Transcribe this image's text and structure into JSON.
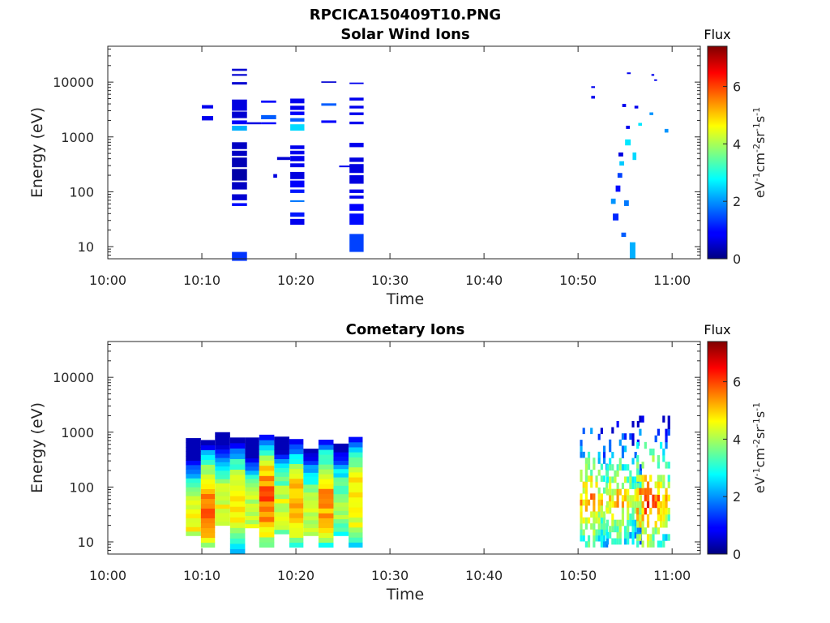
{
  "figure_title": "RPCICA150409T10.PNG",
  "colorbar": {
    "label": "Flux",
    "units": "eV-1cm-2sr-1s-1",
    "units_parts": [
      {
        "t": "eV",
        "sup": false
      },
      {
        "t": "-1",
        "sup": true
      },
      {
        "t": "cm",
        "sup": false
      },
      {
        "t": "-2",
        "sup": true
      },
      {
        "t": "sr",
        "sup": false
      },
      {
        "t": "-1",
        "sup": true
      },
      {
        "t": "s",
        "sup": false
      },
      {
        "t": "-1",
        "sup": true
      }
    ],
    "range": [
      0,
      7.4
    ],
    "ticks": [
      "0",
      "2",
      "4",
      "6"
    ],
    "colormap": "jet"
  },
  "chart_data": [
    {
      "type": "heatmap",
      "title": "Solar Wind Ions",
      "xlabel": "Time",
      "ylabel": "Energy (eV)",
      "x_ticks": [
        "10:00",
        "10:10",
        "10:20",
        "10:30",
        "10:40",
        "10:50",
        "11:00"
      ],
      "y_ticks": [
        "10",
        "100",
        "1000",
        "10000"
      ],
      "y_scale": "log",
      "xlim_minutes_after_10h": [
        0,
        63
      ],
      "ylim_eV": [
        6,
        45000
      ],
      "cells_time_min_emin_emax_flux": [
        [
          10.0,
          11.2,
          2000,
          2400,
          0.8
        ],
        [
          10.0,
          11.2,
          3300,
          3800,
          0.8
        ],
        [
          13.2,
          14.8,
          5.5,
          8,
          1.3
        ],
        [
          13.2,
          14.8,
          55,
          62,
          1.0
        ],
        [
          13.2,
          14.8,
          70,
          90,
          0.6
        ],
        [
          13.2,
          14.8,
          110,
          150,
          0.5
        ],
        [
          13.2,
          14.8,
          160,
          260,
          0.3
        ],
        [
          13.2,
          14.8,
          280,
          420,
          0.4
        ],
        [
          13.2,
          14.8,
          450,
          560,
          0.5
        ],
        [
          13.2,
          14.8,
          600,
          800,
          0.5
        ],
        [
          13.2,
          14.8,
          1300,
          1600,
          2.2
        ],
        [
          13.2,
          14.8,
          1700,
          2000,
          0.9
        ],
        [
          13.2,
          14.8,
          2200,
          2900,
          0.6
        ],
        [
          13.2,
          14.8,
          3000,
          4800,
          0.7
        ],
        [
          13.2,
          14.8,
          9000,
          10000,
          0.6
        ],
        [
          13.2,
          14.8,
          13000,
          14000,
          0.6
        ],
        [
          13.2,
          14.8,
          16000,
          17500,
          0.6
        ],
        [
          14.8,
          16.3,
          1700,
          1850,
          0.7
        ],
        [
          16.3,
          17.9,
          1700,
          1850,
          0.9
        ],
        [
          16.3,
          17.9,
          2100,
          2500,
          1.6
        ],
        [
          16.3,
          17.9,
          4200,
          4600,
          0.9
        ],
        [
          17.6,
          18.0,
          180,
          210,
          0.7
        ],
        [
          18.0,
          19.4,
          380,
          430,
          0.6
        ],
        [
          19.4,
          20.9,
          25,
          32,
          0.8
        ],
        [
          19.4,
          20.9,
          35,
          42,
          1.1
        ],
        [
          19.4,
          20.9,
          65,
          70,
          1.8
        ],
        [
          19.4,
          20.9,
          95,
          110,
          1.1
        ],
        [
          19.4,
          20.9,
          120,
          160,
          0.9
        ],
        [
          19.4,
          20.9,
          170,
          230,
          0.7
        ],
        [
          19.4,
          20.9,
          280,
          330,
          0.8
        ],
        [
          19.4,
          20.9,
          360,
          450,
          0.8
        ],
        [
          19.4,
          20.9,
          480,
          560,
          0.8
        ],
        [
          19.4,
          20.9,
          600,
          700,
          0.8
        ],
        [
          19.4,
          20.9,
          1300,
          1700,
          2.5
        ],
        [
          19.4,
          20.9,
          1900,
          2200,
          1.6
        ],
        [
          19.4,
          20.9,
          2500,
          2900,
          0.9
        ],
        [
          19.4,
          20.9,
          3100,
          3700,
          0.8
        ],
        [
          19.4,
          20.9,
          4100,
          5000,
          0.8
        ],
        [
          22.7,
          24.3,
          1800,
          2000,
          0.9
        ],
        [
          22.7,
          24.3,
          3700,
          4100,
          1.6
        ],
        [
          22.7,
          24.3,
          9700,
          10300,
          0.6
        ],
        [
          24.6,
          26.0,
          280,
          300,
          0.8
        ],
        [
          25.7,
          27.2,
          8,
          17,
          1.4
        ],
        [
          25.7,
          27.2,
          25,
          40,
          1.0
        ],
        [
          25.7,
          27.2,
          45,
          60,
          0.9
        ],
        [
          25.7,
          27.2,
          75,
          85,
          0.8
        ],
        [
          25.7,
          27.2,
          95,
          110,
          0.8
        ],
        [
          25.7,
          27.2,
          140,
          200,
          0.7
        ],
        [
          25.7,
          27.2,
          220,
          320,
          0.7
        ],
        [
          25.7,
          27.2,
          350,
          420,
          0.7
        ],
        [
          25.7,
          27.2,
          650,
          780,
          0.8
        ],
        [
          25.7,
          27.2,
          1700,
          1900,
          0.8
        ],
        [
          25.7,
          27.2,
          2500,
          2800,
          0.8
        ],
        [
          25.7,
          27.2,
          3300,
          3700,
          0.8
        ],
        [
          25.7,
          27.2,
          4600,
          5200,
          0.8
        ],
        [
          25.7,
          27.2,
          9200,
          9800,
          0.8
        ],
        [
          51.4,
          51.8,
          5000,
          5600,
          0.8
        ],
        [
          51.4,
          51.8,
          7800,
          8400,
          0.8
        ],
        [
          53.5,
          54.0,
          60,
          75,
          2.0
        ],
        [
          53.7,
          54.3,
          30,
          40,
          1.2
        ],
        [
          54.0,
          54.5,
          100,
          130,
          1.0
        ],
        [
          54.2,
          54.7,
          180,
          220,
          1.4
        ],
        [
          54.3,
          54.8,
          440,
          520,
          0.7
        ],
        [
          54.4,
          54.9,
          300,
          360,
          2.4
        ],
        [
          54.6,
          55.1,
          15,
          18,
          1.6
        ],
        [
          54.9,
          55.4,
          55,
          70,
          1.8
        ],
        [
          55.0,
          55.6,
          700,
          900,
          2.6
        ],
        [
          55.1,
          55.5,
          1400,
          1600,
          0.8
        ],
        [
          54.7,
          55.1,
          3500,
          4000,
          0.8
        ],
        [
          55.2,
          55.6,
          14000,
          15000,
          0.8
        ],
        [
          55.5,
          56.1,
          6,
          12,
          2.2
        ],
        [
          55.8,
          56.2,
          380,
          520,
          2.5
        ],
        [
          56.4,
          56.8,
          1600,
          1800,
          2.6
        ],
        [
          56.0,
          56.4,
          3300,
          3700,
          0.8
        ],
        [
          57.6,
          58.0,
          2500,
          2800,
          2.0
        ],
        [
          57.8,
          58.1,
          13000,
          14000,
          0.8
        ],
        [
          58.1,
          58.4,
          10500,
          11200,
          0.8
        ],
        [
          59.2,
          59.6,
          1200,
          1400,
          2.0
        ]
      ]
    },
    {
      "type": "heatmap",
      "title": "Cometary Ions",
      "xlabel": "Time",
      "ylabel": "Energy (eV)",
      "x_ticks": [
        "10:00",
        "10:10",
        "10:20",
        "10:30",
        "10:40",
        "10:50",
        "11:00"
      ],
      "y_ticks": [
        "10",
        "100",
        "1000",
        "10000"
      ],
      "y_scale": "log",
      "xlim_minutes_after_10h": [
        0,
        63
      ],
      "ylim_eV": [
        6,
        45000
      ],
      "profiles_time_min_emin_emax": [
        [
          8.3,
          9.9,
          13,
          780
        ],
        [
          9.9,
          11.4,
          8,
          720
        ],
        [
          11.4,
          13.0,
          20,
          1000
        ],
        [
          13.0,
          14.6,
          6,
          800
        ],
        [
          14.6,
          16.1,
          18,
          800
        ],
        [
          16.1,
          17.7,
          8,
          900
        ],
        [
          17.7,
          19.3,
          14,
          830
        ],
        [
          19.3,
          20.8,
          8,
          750
        ],
        [
          20.8,
          22.4,
          13,
          500
        ],
        [
          22.4,
          24.0,
          8,
          730
        ],
        [
          24.0,
          25.6,
          13,
          620
        ],
        [
          25.6,
          27.1,
          8,
          820
        ]
      ],
      "profile_peak_flux": [
        4.6,
        5.6,
        4.5,
        4.8,
        4.3,
        5.8,
        4.4,
        5.2,
        4.3,
        5.4,
        3.9,
        5.0
      ],
      "profile_peak_energy_eV": [
        25,
        40,
        45,
        55,
        35,
        60,
        40,
        50,
        35,
        55,
        45,
        60
      ],
      "late_clusters_time_min_emin_emax_peakflux": [
        [
          50.2,
          53.2,
          8,
          1200,
          5.8
        ],
        [
          53.0,
          56.8,
          9,
          1600,
          5.4
        ],
        [
          56.2,
          59.8,
          8,
          2000,
          6.3
        ]
      ]
    }
  ]
}
